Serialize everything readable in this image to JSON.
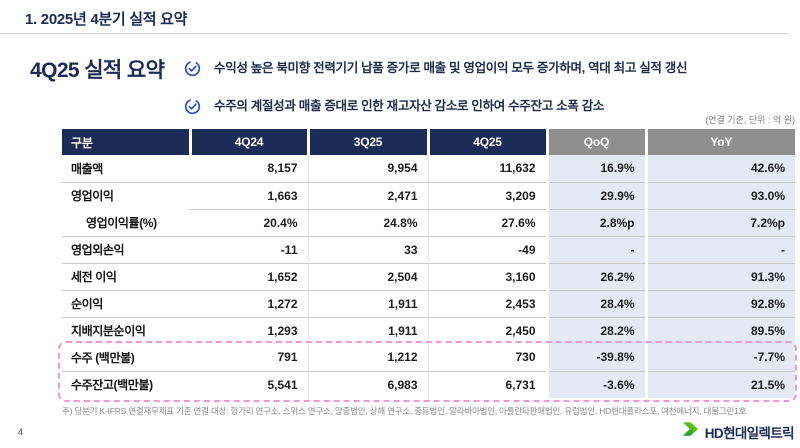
{
  "header": {
    "title": "1. 2025년 4분기 실적 요약",
    "page_number": "4"
  },
  "section": {
    "heading": "4Q25 실적 요약",
    "bullets": [
      {
        "icon": "check-circle-icon",
        "text": "수익성 높은 북미향 전력기기 납품 증가로  매출 및 영업이익 모두 증가하며, 역대 최고 실적 갱신"
      },
      {
        "icon": "check-circle-icon",
        "text": "수주의 계절성과 매출 증대로 인한 재고자산 감소로 인하여 수주잔고 소폭 감소"
      }
    ]
  },
  "table": {
    "unit_note": "(연결 기준, 단위 : 억 원)",
    "columns": [
      "구분",
      "4Q24",
      "3Q25",
      "4Q25",
      "QoQ",
      "YoY"
    ],
    "rows": [
      {
        "label": "매출액",
        "indent": false,
        "separator": "none",
        "values": [
          "8,157",
          "9,954",
          "11,632",
          "16.9%",
          "42.6%"
        ]
      },
      {
        "label": "영업이익",
        "indent": false,
        "separator": "full",
        "values": [
          "1,663",
          "2,471",
          "3,209",
          "29.9%",
          "93.0%"
        ]
      },
      {
        "label": "영업이익률(%)",
        "indent": true,
        "separator": "values",
        "values": [
          "20.4%",
          "24.8%",
          "27.6%",
          "2.8%p",
          "7.2%p"
        ]
      },
      {
        "label": "영업외손익",
        "indent": false,
        "separator": "full",
        "values": [
          "-11",
          "33",
          "-49",
          "-",
          "-"
        ]
      },
      {
        "label": "세전 이익",
        "indent": false,
        "separator": "full",
        "values": [
          "1,652",
          "2,504",
          "3,160",
          "26.2%",
          "91.3%"
        ]
      },
      {
        "label": "순이익",
        "indent": false,
        "separator": "full",
        "values": [
          "1,272",
          "1,911",
          "2,453",
          "28.4%",
          "92.8%"
        ]
      },
      {
        "label": "지배지분순이익",
        "indent": false,
        "separator": "full",
        "values": [
          "1,293",
          "1,911",
          "2,450",
          "28.2%",
          "89.5%"
        ]
      },
      {
        "label": "수주 (백만불)",
        "indent": false,
        "separator": "none",
        "values": [
          "791",
          "1,212",
          "730",
          "-39.8%",
          "-7.7%"
        ]
      },
      {
        "label": "수주잔고(백만불)",
        "indent": false,
        "separator": "full",
        "values": [
          "5,541",
          "6,983",
          "6,731",
          "-3.6%",
          "21.5%"
        ]
      }
    ]
  },
  "footnote": "주) 당분기 K-IFRS 연결재무제표 기준 연결 대상: 헝가리 연구소, 스위스 연구소, 양중법인, 상해 연구소, 중동법인, 알라바마법인, 아틀란타판매법인, 유럽법인, HD현대플라스포, 여천에너지, 대불그린1호",
  "logo": {
    "icon": "hd-hyundai-arrow-icon",
    "text": "HD현대일렉트릭"
  },
  "colors": {
    "navy": "#1b2b55",
    "header_gray": "#8f8f8f",
    "shaded_column": "#e4e9f4",
    "row_line": "#c8c8c8",
    "highlight_dashed_pink": "#f097d1",
    "check_blue": "#2c4fc4",
    "logo_green_dark": "#00963c",
    "logo_green_light": "#8cd500"
  }
}
